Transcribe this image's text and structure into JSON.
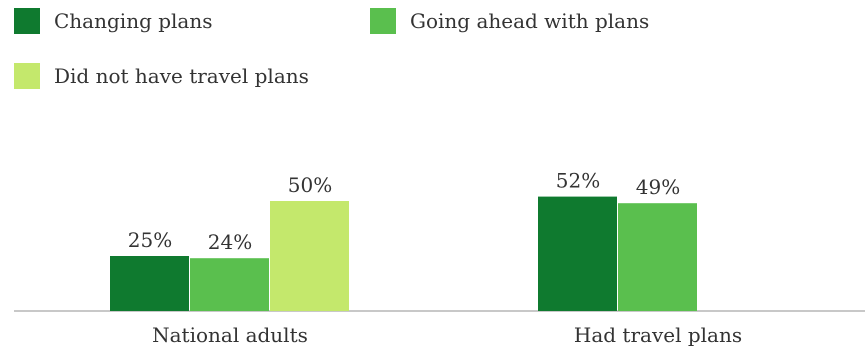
{
  "chart_data": {
    "type": "bar",
    "categories": [
      "National adults",
      "Had travel plans"
    ],
    "series": [
      {
        "name": "Changing plans",
        "color": "#0f7a2f",
        "values": [
          25,
          52
        ]
      },
      {
        "name": "Going ahead with plans",
        "color": "#5abf4e",
        "values": [
          24,
          49
        ]
      },
      {
        "name": "Did not have travel plans",
        "color": "#c4e86c",
        "values": [
          50,
          null
        ]
      }
    ],
    "value_suffix": "%",
    "ylim": [
      0,
      100
    ],
    "grid": false,
    "legend_position": "top-left"
  }
}
